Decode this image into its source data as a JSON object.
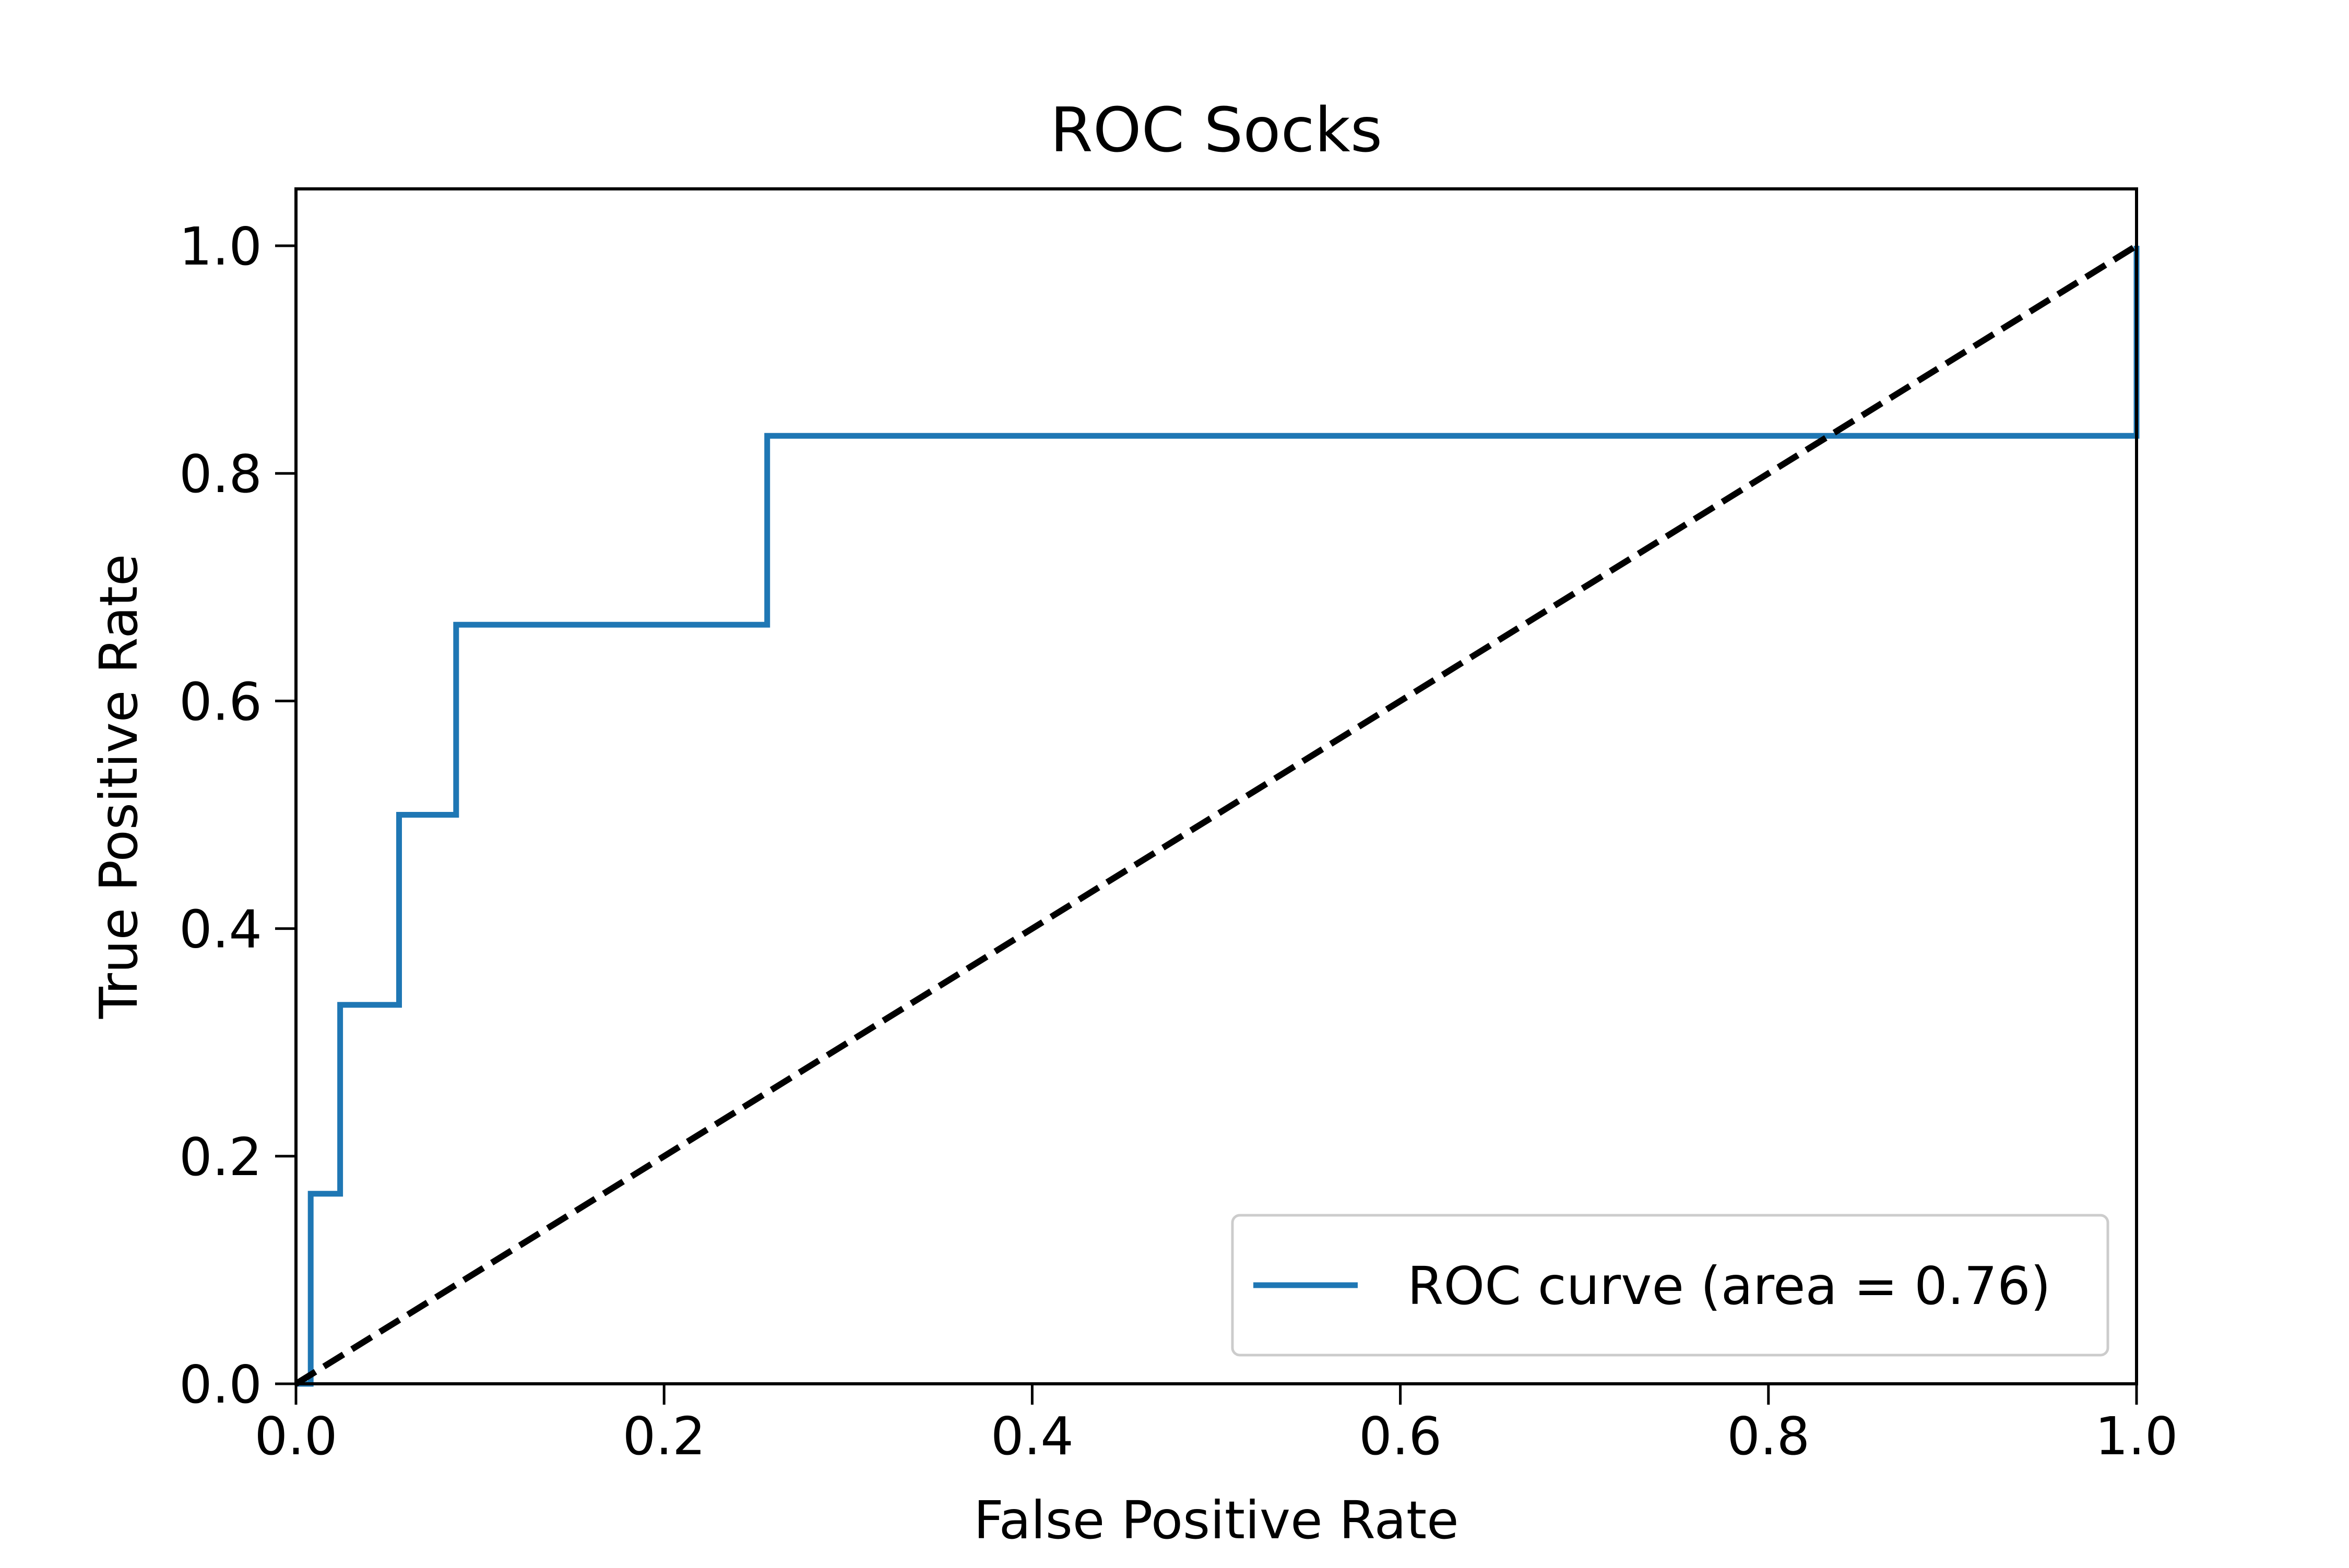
{
  "chart_data": {
    "type": "line",
    "title": "ROC Socks",
    "xlabel": "False Positive Rate",
    "ylabel": "True Positive Rate",
    "xlim": [
      0.0,
      1.0
    ],
    "ylim": [
      0.0,
      1.05
    ],
    "x_ticks": [
      0.0,
      0.2,
      0.4,
      0.6,
      0.8,
      1.0
    ],
    "x_tick_labels": [
      "0.0",
      "0.2",
      "0.4",
      "0.6",
      "0.8",
      "1.0"
    ],
    "y_ticks": [
      0.0,
      0.2,
      0.4,
      0.6,
      0.8,
      1.0
    ],
    "y_tick_labels": [
      "0.0",
      "0.2",
      "0.4",
      "0.6",
      "0.8",
      "1.0"
    ],
    "grid": false,
    "legend_position": "lower-right",
    "series": [
      {
        "name": "ROC curve (area = 0.76)",
        "color": "#1f77b4",
        "linestyle": "solid",
        "drawstyle": "steps",
        "points": [
          [
            0.0,
            0.0
          ],
          [
            0.008,
            0.0
          ],
          [
            0.008,
            0.167
          ],
          [
            0.024,
            0.167
          ],
          [
            0.024,
            0.333
          ],
          [
            0.056,
            0.333
          ],
          [
            0.056,
            0.5
          ],
          [
            0.087,
            0.5
          ],
          [
            0.087,
            0.667
          ],
          [
            0.256,
            0.667
          ],
          [
            0.256,
            0.833
          ],
          [
            1.0,
            0.833
          ],
          [
            1.0,
            1.0
          ]
        ]
      },
      {
        "color": "#000000",
        "linestyle": "dashed",
        "points": [
          [
            0.0,
            0.0
          ],
          [
            1.0,
            1.0
          ]
        ]
      }
    ],
    "legend_entries": [
      {
        "series_index": 0,
        "label": "ROC curve (area = 0.76)"
      }
    ]
  }
}
